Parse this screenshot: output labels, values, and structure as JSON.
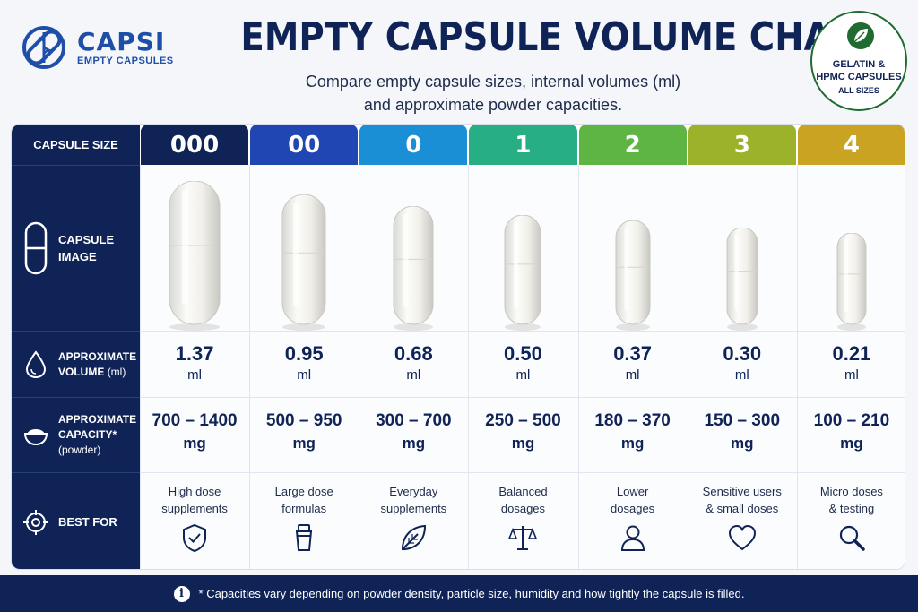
{
  "brand": {
    "name": "CAPSI",
    "tagline": "EMPTY CAPSULES"
  },
  "title": "EMPTY CAPSULE VOLUME CHART",
  "subtitle_line1": "Compare empty capsule sizes, internal volumes (ml)",
  "subtitle_line2": "and approximate powder capacities.",
  "badge": {
    "line1": "GELATIN &",
    "line2": "HPMC CAPSULES",
    "line3": "ALL SIZES",
    "icon": "leaf-icon"
  },
  "row_headers": {
    "size": "CAPSULE SIZE",
    "image_l1": "CAPSULE",
    "image_l2": "IMAGE",
    "volume_l1": "APPROXIMATE",
    "volume_l2": "VOLUME",
    "volume_l2_unit": "(ml)",
    "capacity_l1": "APPROXIMATE",
    "capacity_l2": "CAPACITY*",
    "capacity_l3": "(powder)",
    "best": "BEST FOR"
  },
  "columns": [
    {
      "size": "000",
      "color": "#0f2357",
      "volume": "1.37",
      "unit": "ml",
      "capacity": "700 – 1400",
      "cap_unit": "mg",
      "best_l1": "High dose",
      "best_l2": "supplements",
      "icon": "shield-check-icon"
    },
    {
      "size": "00",
      "color": "#1f46b3",
      "volume": "0.95",
      "unit": "ml",
      "capacity": "500 – 950",
      "cap_unit": "mg",
      "best_l1": "Large dose",
      "best_l2": "formulas",
      "icon": "shaker-bottle-icon"
    },
    {
      "size": "0",
      "color": "#1a8fd6",
      "volume": "0.68",
      "unit": "ml",
      "capacity": "300 – 700",
      "cap_unit": "mg",
      "best_l1": "Everyday",
      "best_l2": "supplements",
      "icon": "leaf-icon"
    },
    {
      "size": "1",
      "color": "#27ae84",
      "volume": "0.50",
      "unit": "ml",
      "capacity": "250 – 500",
      "cap_unit": "mg",
      "best_l1": "Balanced",
      "best_l2": "dosages",
      "icon": "scale-icon"
    },
    {
      "size": "2",
      "color": "#5fb544",
      "volume": "0.37",
      "unit": "ml",
      "capacity": "180 – 370",
      "cap_unit": "mg",
      "best_l1": "Lower",
      "best_l2": "dosages",
      "icon": "user-icon"
    },
    {
      "size": "3",
      "color": "#9bb22a",
      "volume": "0.30",
      "unit": "ml",
      "capacity": "150 – 300",
      "cap_unit": "mg",
      "best_l1": "Sensitive users",
      "best_l2": "& small doses",
      "icon": "heart-icon"
    },
    {
      "size": "4",
      "color": "#caa322",
      "volume": "0.21",
      "unit": "ml",
      "capacity": "100 – 210",
      "cap_unit": "mg",
      "best_l1": "Micro doses",
      "best_l2": "& testing",
      "icon": "magnifier-icon"
    }
  ],
  "footer": "* Capacities vary depending on powder density, particle size, humidity and how tightly the capsule is filled."
}
